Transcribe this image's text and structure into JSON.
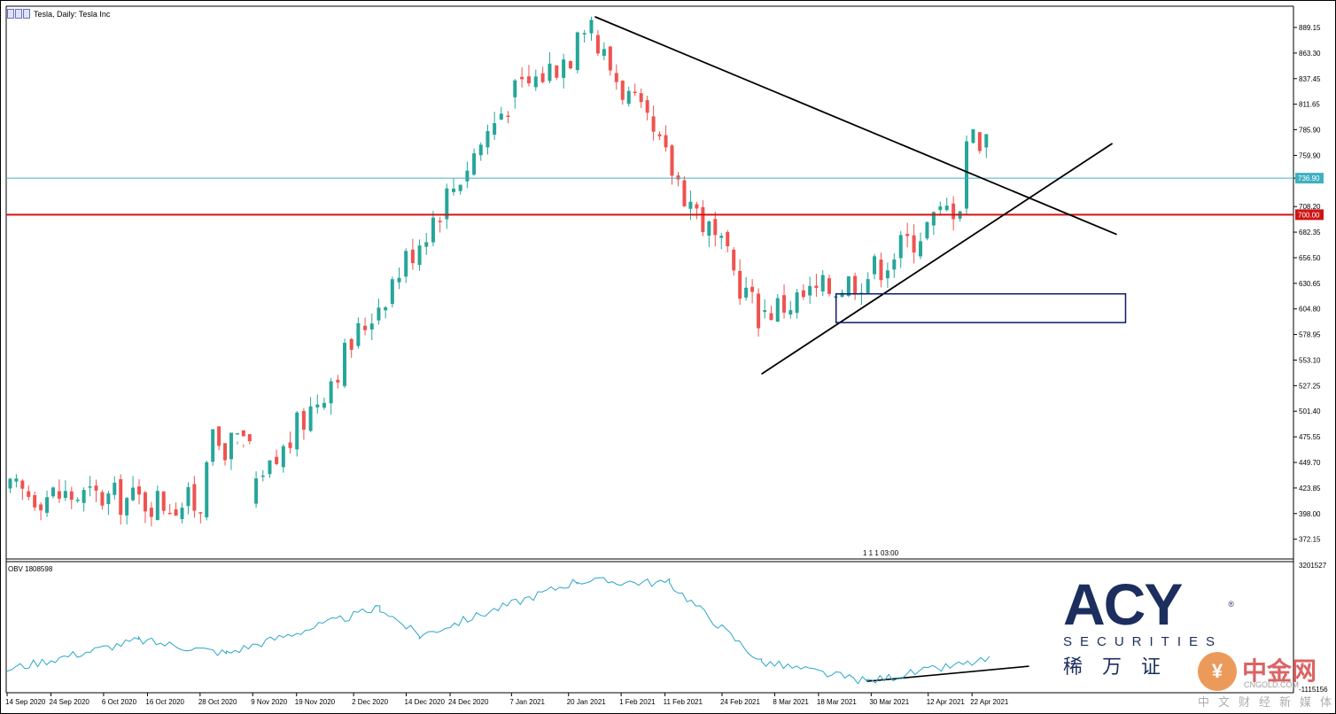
{
  "header": {
    "title": "Tesla, Daily:  Tesla Inc"
  },
  "indicator": {
    "label": "OBV 1808598",
    "scale_top": "3201527",
    "scale_bottom": "-1115156"
  },
  "time_marker": "1 1 1 03:00",
  "logo": {
    "main": "ACY",
    "registered": "®",
    "sub": "SECURITIES",
    "cn": "稀万证"
  },
  "watermark": {
    "icon": "coin-icon",
    "title": "中金网",
    "url": "CNGOLD.COM",
    "tagline": "中文财经新媒体"
  },
  "colors": {
    "bull": "#26a69a",
    "bear": "#ef5350",
    "resistance": "#d01414",
    "current": "#3fb0c0",
    "obv": "#2aa7c9",
    "box": "#0d1a6e",
    "trend": "#000000"
  },
  "chart_data": {
    "type": "candlestick",
    "symbol": "Tesla Inc",
    "timeframe": "Daily",
    "y_ticks": [
      "889.15",
      "863.30",
      "837.45",
      "811.65",
      "785.90",
      "759.90",
      "736.90",
      "708.20",
      "682.35",
      "656.50",
      "630.65",
      "604.80",
      "578.95",
      "553.10",
      "527.25",
      "501.40",
      "475.55",
      "449.70",
      "423.85",
      "398.00",
      "372.15"
    ],
    "x_ticks": [
      "14 Sep 2020",
      "24 Sep 2020",
      "6 Oct 2020",
      "16 Oct 2020",
      "28 Oct 2020",
      "9 Nov 2020",
      "19 Nov 2020",
      "2 Dec 2020",
      "14 Dec 2020",
      "24 Dec 2020",
      "7 Jan 2021",
      "20 Jan 2021",
      "1 Feb 2021",
      "11 Feb 2021",
      "24 Feb 2021",
      "8 Mar 2021",
      "18 Mar 2021",
      "30 Mar 2021",
      "12 Apr 2021",
      "22 Apr 2021"
    ],
    "price_labels": [
      {
        "value": 736.9,
        "text": "736.90",
        "kind": "current"
      },
      {
        "value": 700.0,
        "text": "700.00",
        "kind": "resistance"
      }
    ],
    "ohlc_segments": [
      {
        "from": "14 Sep 2020",
        "to": "9 Nov 2020",
        "count": 40,
        "start": 420,
        "end": 405,
        "low": 360,
        "high": 468,
        "note": "sideways range"
      },
      {
        "from": "9 Nov 2020",
        "to": "7 Jan 2021",
        "count": 38,
        "start": 408,
        "end": 816,
        "note": "rally"
      },
      {
        "from": "7 Jan 2021",
        "to": "26 Jan 2021",
        "count": 12,
        "start": 816,
        "end": 880,
        "high": 900
      },
      {
        "from": "26 Jan 2021",
        "to": "5 Mar 2021",
        "count": 27,
        "start": 880,
        "end": 600,
        "low": 539
      },
      {
        "from": "5 Mar 2021",
        "to": "30 Mar 2021",
        "count": 17,
        "start": 600,
        "end": 640,
        "low": 595
      },
      {
        "from": "30 Mar 2021",
        "to": "26 Apr 2021",
        "count": 18,
        "start": 640,
        "end": 737,
        "high": 780
      }
    ],
    "obv_segments": [
      {
        "from": "14 Sep 2020",
        "to": "14 Oct 2020",
        "start": 0.15,
        "end": 0.42
      },
      {
        "from": "14 Oct 2020",
        "to": "3 Nov 2020",
        "start": 0.42,
        "end": 0.3
      },
      {
        "from": "3 Nov 2020",
        "to": "8 Dec 2020",
        "start": 0.3,
        "end": 0.72
      },
      {
        "from": "8 Dec 2020",
        "to": "17 Dec 2020",
        "start": 0.72,
        "end": 0.46
      },
      {
        "from": "17 Dec 2020",
        "to": "22 Jan 2021",
        "start": 0.46,
        "end": 0.97
      },
      {
        "from": "22 Jan 2021",
        "to": "12 Feb 2021",
        "start": 0.97,
        "end": 0.95
      },
      {
        "from": "12 Feb 2021",
        "to": "5 Mar 2021",
        "start": 0.95,
        "end": 0.22
      },
      {
        "from": "5 Mar 2021",
        "to": "29 Mar 2021",
        "start": 0.22,
        "end": 0.04
      },
      {
        "from": "29 Mar 2021",
        "to": "26 Apr 2021",
        "start": 0.04,
        "end": 0.24
      }
    ],
    "annotations": [
      {
        "type": "horizontal",
        "value": 700.0,
        "label": "700.00",
        "style": "resistance"
      },
      {
        "type": "horizontal",
        "value": 736.9,
        "label": "736.90",
        "style": "current"
      },
      {
        "type": "trendline",
        "from": [
          "26 Jan 2021",
          900
        ],
        "to": [
          "25 May 2021",
          680
        ],
        "role": "descending resistance"
      },
      {
        "type": "trendline",
        "from": [
          "5 Mar 2021",
          539
        ],
        "to": [
          "24 May 2021",
          772
        ],
        "role": "ascending support"
      },
      {
        "type": "rectangle",
        "from": [
          "22 Mar 2021",
          620
        ],
        "to": [
          "27 May 2021",
          591
        ],
        "role": "demand zone"
      },
      {
        "type": "trendline",
        "pane": "obv",
        "from": [
          "29 Mar 2021",
          0.04
        ],
        "to": [
          "5 May 2021",
          0.18
        ],
        "role": "rising OBV"
      }
    ]
  }
}
